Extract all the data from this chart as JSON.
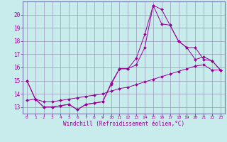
{
  "xlabel": "Windchill (Refroidissement éolien,°C)",
  "bg_color": "#c8ecec",
  "line_color": "#990099",
  "grid_color": "#9999bb",
  "spine_color": "#7777aa",
  "xlim": [
    -0.5,
    23.5
  ],
  "ylim": [
    12.5,
    21.0
  ],
  "xticks": [
    0,
    1,
    2,
    3,
    4,
    5,
    6,
    7,
    8,
    9,
    10,
    11,
    12,
    13,
    14,
    15,
    16,
    17,
    18,
    19,
    20,
    21,
    22,
    23
  ],
  "yticks": [
    13,
    14,
    15,
    16,
    17,
    18,
    19,
    20
  ],
  "line1_x": [
    0,
    1,
    2,
    3,
    4,
    5,
    6,
    7,
    8,
    9,
    10,
    11,
    12,
    13,
    14,
    15,
    16,
    17,
    18,
    19,
    20,
    21,
    22,
    23
  ],
  "line1_y": [
    15.0,
    13.6,
    13.0,
    13.0,
    13.1,
    13.2,
    12.8,
    13.2,
    13.3,
    13.4,
    14.8,
    15.9,
    15.9,
    16.7,
    18.5,
    20.7,
    20.4,
    19.2,
    18.0,
    17.5,
    16.6,
    16.8,
    16.5,
    15.8
  ],
  "line2_x": [
    0,
    1,
    2,
    3,
    4,
    5,
    6,
    7,
    8,
    9,
    10,
    11,
    12,
    13,
    14,
    15,
    16,
    17,
    18,
    19,
    20,
    21,
    22,
    23
  ],
  "line2_y": [
    15.0,
    13.6,
    13.0,
    13.0,
    13.1,
    13.2,
    12.8,
    13.2,
    13.3,
    13.4,
    14.7,
    15.9,
    15.9,
    16.2,
    17.5,
    20.7,
    19.3,
    19.2,
    18.0,
    17.5,
    17.5,
    16.6,
    16.5,
    15.8
  ],
  "line3_x": [
    0,
    1,
    2,
    3,
    4,
    5,
    6,
    7,
    8,
    9,
    10,
    11,
    12,
    13,
    14,
    15,
    16,
    17,
    18,
    19,
    20,
    21,
    22,
    23
  ],
  "line3_y": [
    13.5,
    13.6,
    13.4,
    13.4,
    13.5,
    13.6,
    13.7,
    13.8,
    13.9,
    14.0,
    14.2,
    14.4,
    14.5,
    14.7,
    14.9,
    15.1,
    15.3,
    15.5,
    15.7,
    15.9,
    16.1,
    16.2,
    15.8,
    15.8
  ]
}
